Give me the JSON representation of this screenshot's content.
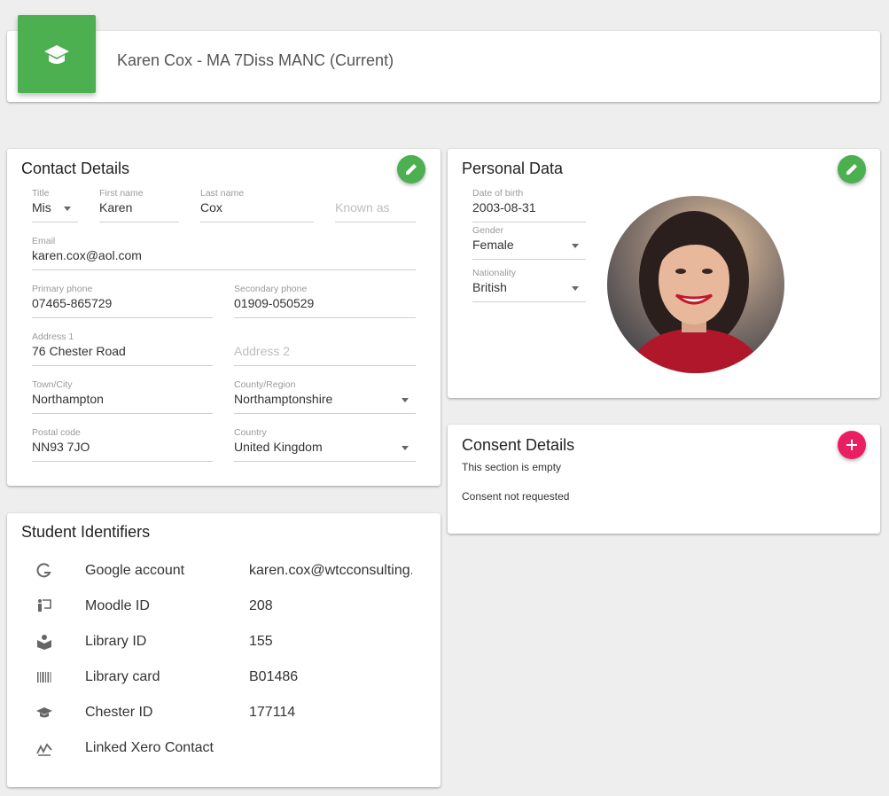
{
  "header": {
    "title": "Karen Cox - MA 7Diss MANC (Current)"
  },
  "contact_details": {
    "title": "Contact Details",
    "fields": [
      {
        "label": "Title",
        "value": "Mis"
      },
      {
        "label": "First name",
        "value": "Karen"
      },
      {
        "label": "Last name",
        "value": "Cox"
      },
      {
        "placeholder": "Known as"
      },
      {
        "label": "Email",
        "value": "karen.cox@aol.com"
      },
      {
        "label": "Primary phone",
        "value": "07465-865729"
      },
      {
        "label": "Secondary phone",
        "value": "01909-050529"
      },
      {
        "label": "Address 1",
        "value": "76 Chester Road"
      },
      {
        "placeholder": "Address 2"
      },
      {
        "label": "Town/City",
        "value": "Northampton"
      },
      {
        "label": "County/Region",
        "value": "Northamptonshire"
      },
      {
        "label": "Postal code",
        "value": "NN93 7JO"
      },
      {
        "label": "Country",
        "value": "United Kingdom"
      }
    ]
  },
  "student_identifiers": {
    "title": "Student Identifiers",
    "rows": [
      {
        "label": "Google account",
        "value": "karen.cox@wtcconsulting."
      },
      {
        "label": "Moodle ID",
        "value": "208"
      },
      {
        "label": "Library ID",
        "value": "155"
      },
      {
        "label": "Library card",
        "value": "B01486"
      },
      {
        "label": "Chester ID",
        "value": "177114"
      },
      {
        "label": "Linked Xero Contact"
      }
    ]
  },
  "personal_data": {
    "title": "Personal Data",
    "fields": [
      {
        "label": "Date of birth",
        "value": "2003-08-31"
      },
      {
        "label": "Gender",
        "value": "Female"
      },
      {
        "label": "Nationality",
        "value": "British"
      }
    ]
  },
  "consent_details": {
    "title": "Consent Details",
    "status": "This section is empty",
    "note": "Consent not requested"
  }
}
